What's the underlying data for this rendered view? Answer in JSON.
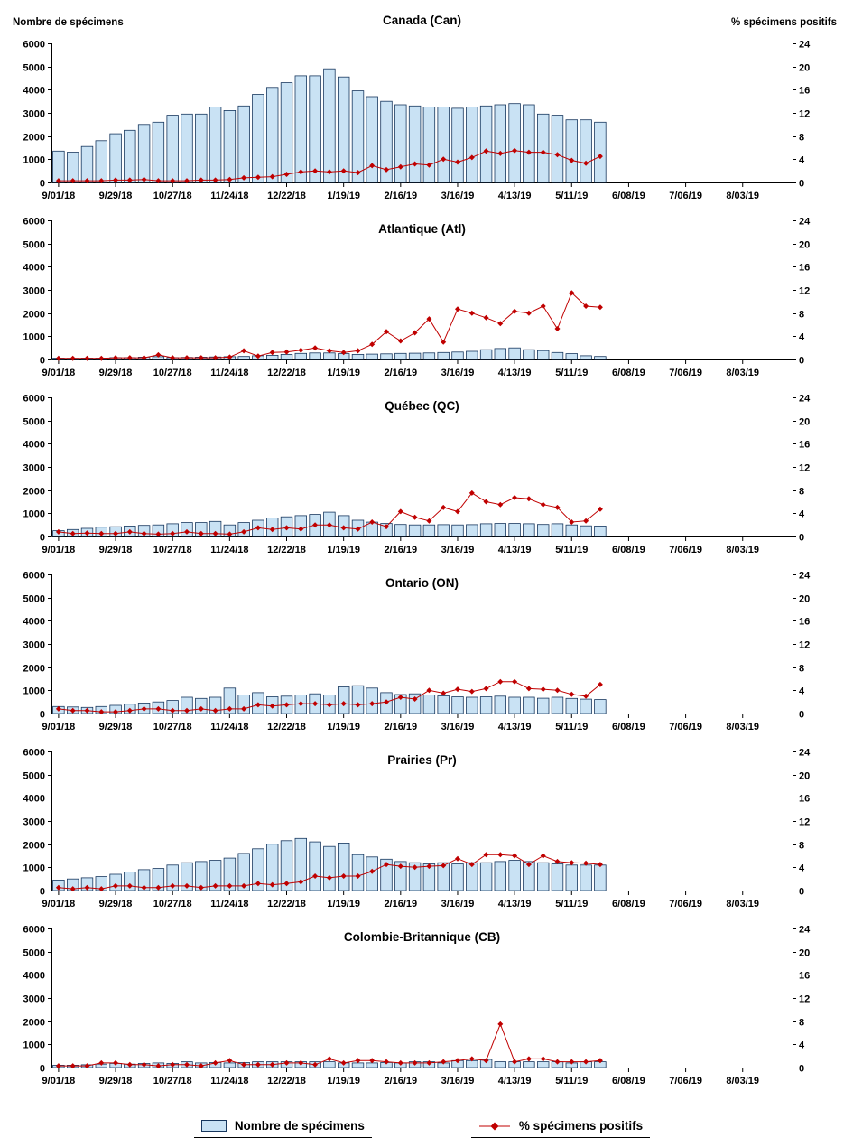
{
  "page": {
    "left_axis_title": "Nombre de spécimens",
    "right_axis_title": "% spécimens positifs",
    "legend_bars": "Nombre de spécimens",
    "legend_line": "% spécimens positifs"
  },
  "colors": {
    "bar_fill": "#C9E2F4",
    "bar_border": "#17375E",
    "line": "#C00000",
    "axis": "#000000",
    "text": "#000000"
  },
  "axes": {
    "x_tick_labels": [
      "9/01/18",
      "9/29/18",
      "10/27/18",
      "11/24/18",
      "12/22/18",
      "1/19/19",
      "2/16/19",
      "3/16/19",
      "4/13/19",
      "5/11/19",
      "6/08/19",
      "7/06/19",
      "8/03/19"
    ],
    "total_weeks": 52,
    "y_left": {
      "min": 0,
      "max": 6000,
      "step": 1000
    },
    "y_right": {
      "min": 0,
      "max": 24,
      "step": 4
    },
    "grid": "off",
    "legend_position": "bottom-center"
  },
  "chart_data": [
    {
      "type": "bar",
      "id": "can",
      "title": "Canada (Can)",
      "ylim_left": [
        0,
        6000
      ],
      "ylim_right": [
        0,
        24
      ],
      "categories": [
        "9/01/18",
        "9/08/18",
        "9/15/18",
        "9/22/18",
        "9/29/18",
        "10/06/18",
        "10/13/18",
        "10/20/18",
        "10/27/18",
        "11/03/18",
        "11/10/18",
        "11/17/18",
        "11/24/18",
        "12/01/18",
        "12/08/18",
        "12/15/18",
        "12/22/18",
        "12/29/18",
        "1/05/19",
        "1/12/19",
        "1/19/19",
        "1/26/19",
        "2/02/19",
        "2/09/19",
        "2/16/19",
        "2/23/19",
        "3/02/19",
        "3/09/19",
        "3/16/19",
        "3/23/19",
        "3/30/19",
        "4/06/19",
        "4/13/19",
        "4/20/19",
        "4/27/19",
        "5/04/19",
        "5/11/19",
        "5/18/19",
        "5/25/19"
      ],
      "series": [
        {
          "name": "Nombre de spécimens",
          "type": "bar",
          "axis": "left",
          "values": [
            1350,
            1300,
            1550,
            1800,
            2100,
            2250,
            2500,
            2600,
            2900,
            2950,
            2950,
            3250,
            3100,
            3300,
            3800,
            4100,
            4300,
            4600,
            4600,
            4900,
            4550,
            3950,
            3700,
            3500,
            3350,
            3300,
            3250,
            3250,
            3200,
            3250,
            3300,
            3350,
            3400,
            3350,
            2950,
            2900,
            2700,
            2700,
            2600
          ]
        },
        {
          "name": "% spécimens positifs",
          "type": "line",
          "axis": "right",
          "values": [
            0.3,
            0.3,
            0.3,
            0.3,
            0.4,
            0.4,
            0.5,
            0.3,
            0.3,
            0.3,
            0.4,
            0.4,
            0.5,
            0.8,
            0.9,
            1.0,
            1.4,
            1.8,
            2.0,
            1.8,
            2.0,
            1.7,
            2.9,
            2.2,
            2.7,
            3.2,
            3.0,
            4.0,
            3.5,
            4.3,
            5.4,
            5.0,
            5.5,
            5.2,
            5.2,
            4.8,
            3.8,
            3.3,
            4.5
          ]
        }
      ]
    },
    {
      "type": "bar",
      "id": "atl",
      "title": "Atlantique (Atl)",
      "ylim_left": [
        0,
        6000
      ],
      "ylim_right": [
        0,
        24
      ],
      "categories": [
        "9/01/18",
        "9/08/18",
        "9/15/18",
        "9/22/18",
        "9/29/18",
        "10/06/18",
        "10/13/18",
        "10/20/18",
        "10/27/18",
        "11/03/18",
        "11/10/18",
        "11/17/18",
        "11/24/18",
        "12/01/18",
        "12/08/18",
        "12/15/18",
        "12/22/18",
        "12/29/18",
        "1/05/19",
        "1/12/19",
        "1/19/19",
        "1/26/19",
        "2/02/19",
        "2/09/19",
        "2/16/19",
        "2/23/19",
        "3/02/19",
        "3/09/19",
        "3/16/19",
        "3/23/19",
        "3/30/19",
        "4/06/19",
        "4/13/19",
        "4/20/19",
        "4/27/19",
        "5/04/19",
        "5/11/19",
        "5/18/19",
        "5/25/19"
      ],
      "series": [
        {
          "name": "Nombre de spécimens",
          "type": "bar",
          "axis": "left",
          "values": [
            60,
            50,
            60,
            60,
            80,
            80,
            100,
            120,
            80,
            90,
            100,
            110,
            120,
            130,
            160,
            180,
            220,
            260,
            280,
            280,
            250,
            220,
            230,
            240,
            260,
            270,
            280,
            300,
            320,
            350,
            420,
            470,
            500,
            420,
            380,
            300,
            250,
            160,
            130
          ]
        },
        {
          "name": "% spécimens positifs",
          "type": "line",
          "axis": "right",
          "values": [
            0.2,
            0.2,
            0.2,
            0.2,
            0.3,
            0.3,
            0.3,
            0.8,
            0.3,
            0.3,
            0.3,
            0.3,
            0.4,
            1.5,
            0.6,
            1.2,
            1.3,
            1.6,
            2.0,
            1.5,
            1.2,
            1.5,
            2.6,
            4.8,
            3.2,
            4.6,
            7.0,
            3.0,
            8.7,
            8.0,
            7.2,
            6.2,
            8.3,
            8.0,
            9.2,
            5.3,
            11.5,
            9.2,
            9.0
          ]
        }
      ]
    },
    {
      "type": "bar",
      "id": "qc",
      "title": "Québec (QC)",
      "ylim_left": [
        0,
        6000
      ],
      "ylim_right": [
        0,
        24
      ],
      "categories": [
        "9/01/18",
        "9/08/18",
        "9/15/18",
        "9/22/18",
        "9/29/18",
        "10/06/18",
        "10/13/18",
        "10/20/18",
        "10/27/18",
        "11/03/18",
        "11/10/18",
        "11/17/18",
        "11/24/18",
        "12/01/18",
        "12/08/18",
        "12/15/18",
        "12/22/18",
        "12/29/18",
        "1/05/19",
        "1/12/19",
        "1/19/19",
        "1/26/19",
        "2/02/19",
        "2/09/19",
        "2/16/19",
        "2/23/19",
        "3/02/19",
        "3/09/19",
        "3/16/19",
        "3/23/19",
        "3/30/19",
        "4/06/19",
        "4/13/19",
        "4/20/19",
        "4/27/19",
        "5/04/19",
        "5/11/19",
        "5/18/19",
        "5/25/19"
      ],
      "series": [
        {
          "name": "Nombre de spécimens",
          "type": "bar",
          "axis": "left",
          "values": [
            250,
            300,
            350,
            400,
            420,
            450,
            480,
            500,
            550,
            600,
            600,
            650,
            500,
            600,
            700,
            800,
            850,
            900,
            950,
            1050,
            900,
            700,
            620,
            560,
            520,
            500,
            500,
            510,
            500,
            510,
            550,
            560,
            560,
            550,
            520,
            550,
            500,
            460,
            450
          ]
        },
        {
          "name": "% spécimens positifs",
          "type": "line",
          "axis": "right",
          "values": [
            0.8,
            0.5,
            0.6,
            0.5,
            0.5,
            0.8,
            0.5,
            0.4,
            0.5,
            0.8,
            0.5,
            0.5,
            0.4,
            0.8,
            1.5,
            1.2,
            1.5,
            1.3,
            2.0,
            2.0,
            1.5,
            1.3,
            2.5,
            1.7,
            4.3,
            3.3,
            2.7,
            5.0,
            4.3,
            7.5,
            6.0,
            5.5,
            6.7,
            6.5,
            5.5,
            5.0,
            2.5,
            2.7,
            4.7
          ]
        }
      ]
    },
    {
      "type": "bar",
      "id": "on",
      "title": "Ontario (ON)",
      "ylim_left": [
        0,
        6000
      ],
      "ylim_right": [
        0,
        24
      ],
      "categories": [
        "9/01/18",
        "9/08/18",
        "9/15/18",
        "9/22/18",
        "9/29/18",
        "10/06/18",
        "10/13/18",
        "10/20/18",
        "10/27/18",
        "11/03/18",
        "11/10/18",
        "11/17/18",
        "11/24/18",
        "12/01/18",
        "12/08/18",
        "12/15/18",
        "12/22/18",
        "12/29/18",
        "1/05/19",
        "1/12/19",
        "1/19/19",
        "1/26/19",
        "2/02/19",
        "2/09/19",
        "2/16/19",
        "2/23/19",
        "3/02/19",
        "3/09/19",
        "3/16/19",
        "3/23/19",
        "3/30/19",
        "4/06/19",
        "4/13/19",
        "4/20/19",
        "4/27/19",
        "5/04/19",
        "5/11/19",
        "5/18/19",
        "5/25/19"
      ],
      "series": [
        {
          "name": "Nombre de spécimens",
          "type": "bar",
          "axis": "left",
          "values": [
            300,
            280,
            260,
            300,
            350,
            400,
            450,
            500,
            560,
            700,
            650,
            700,
            1100,
            800,
            900,
            720,
            750,
            800,
            850,
            800,
            1150,
            1200,
            1100,
            900,
            820,
            850,
            800,
            760,
            720,
            700,
            720,
            750,
            700,
            700,
            660,
            700,
            650,
            620,
            600
          ]
        },
        {
          "name": "% spécimens positifs",
          "type": "line",
          "axis": "right",
          "values": [
            0.8,
            0.5,
            0.5,
            0.3,
            0.3,
            0.5,
            0.8,
            0.8,
            0.5,
            0.5,
            0.8,
            0.5,
            0.8,
            0.8,
            1.5,
            1.3,
            1.5,
            1.7,
            1.7,
            1.5,
            1.7,
            1.5,
            1.7,
            2.0,
            2.8,
            2.5,
            4.0,
            3.5,
            4.2,
            3.8,
            4.3,
            5.5,
            5.5,
            4.3,
            4.2,
            4.0,
            3.3,
            3.0,
            5.0
          ]
        }
      ]
    },
    {
      "type": "bar",
      "id": "pr",
      "title": "Prairies (Pr)",
      "ylim_left": [
        0,
        6000
      ],
      "ylim_right": [
        0,
        24
      ],
      "categories": [
        "9/01/18",
        "9/08/18",
        "9/15/18",
        "9/22/18",
        "9/29/18",
        "10/06/18",
        "10/13/18",
        "10/20/18",
        "10/27/18",
        "11/03/18",
        "11/10/18",
        "11/17/18",
        "11/24/18",
        "12/01/18",
        "12/08/18",
        "12/15/18",
        "12/22/18",
        "12/29/18",
        "1/05/19",
        "1/12/19",
        "1/19/19",
        "1/26/19",
        "2/02/19",
        "2/09/19",
        "2/16/19",
        "2/23/19",
        "3/02/19",
        "3/09/19",
        "3/16/19",
        "3/23/19",
        "3/30/19",
        "4/06/19",
        "4/13/19",
        "4/20/19",
        "4/27/19",
        "5/04/19",
        "5/11/19",
        "5/18/19",
        "5/25/19"
      ],
      "series": [
        {
          "name": "Nombre de spécimens",
          "type": "bar",
          "axis": "left",
          "values": [
            450,
            500,
            550,
            600,
            700,
            800,
            900,
            950,
            1100,
            1200,
            1250,
            1300,
            1400,
            1600,
            1800,
            2000,
            2150,
            2250,
            2100,
            1900,
            2050,
            1550,
            1450,
            1350,
            1250,
            1200,
            1150,
            1200,
            1150,
            1200,
            1200,
            1250,
            1300,
            1250,
            1200,
            1150,
            1100,
            1100,
            1100
          ]
        },
        {
          "name": "% spécimens positifs",
          "type": "line",
          "axis": "right",
          "values": [
            0.5,
            0.3,
            0.5,
            0.3,
            0.8,
            0.8,
            0.5,
            0.5,
            0.8,
            0.8,
            0.5,
            0.8,
            0.8,
            0.8,
            1.2,
            1.0,
            1.2,
            1.5,
            2.5,
            2.2,
            2.5,
            2.5,
            3.3,
            4.5,
            4.2,
            4.0,
            4.2,
            4.3,
            5.5,
            4.5,
            6.2,
            6.2,
            6.0,
            4.5,
            6.0,
            5.0,
            4.8,
            4.7,
            4.5
          ]
        }
      ]
    },
    {
      "type": "bar",
      "id": "cb",
      "title": "Colombie-Britannique (CB)",
      "ylim_left": [
        0,
        6000
      ],
      "ylim_right": [
        0,
        24
      ],
      "categories": [
        "9/01/18",
        "9/08/18",
        "9/15/18",
        "9/22/18",
        "9/29/18",
        "10/06/18",
        "10/13/18",
        "10/20/18",
        "10/27/18",
        "11/03/18",
        "11/10/18",
        "11/17/18",
        "11/24/18",
        "12/01/18",
        "12/08/18",
        "12/15/18",
        "12/22/18",
        "12/29/18",
        "1/05/19",
        "1/12/19",
        "1/19/19",
        "1/26/19",
        "2/02/19",
        "2/09/19",
        "2/16/19",
        "2/23/19",
        "3/02/19",
        "3/09/19",
        "3/16/19",
        "3/23/19",
        "3/30/19",
        "4/06/19",
        "4/13/19",
        "4/20/19",
        "4/27/19",
        "5/04/19",
        "5/11/19",
        "5/18/19",
        "5/25/19"
      ],
      "series": [
        {
          "name": "Nombre de spécimens",
          "type": "bar",
          "axis": "left",
          "values": [
            100,
            100,
            120,
            150,
            180,
            150,
            180,
            200,
            180,
            250,
            200,
            220,
            200,
            220,
            250,
            250,
            250,
            250,
            250,
            250,
            200,
            200,
            200,
            220,
            200,
            250,
            250,
            200,
            300,
            300,
            350,
            250,
            250,
            250,
            250,
            250,
            200,
            250,
            250
          ]
        },
        {
          "name": "% spécimens positifs",
          "type": "line",
          "axis": "right",
          "values": [
            0.3,
            0.3,
            0.3,
            0.8,
            0.8,
            0.5,
            0.5,
            0.3,
            0.5,
            0.5,
            0.3,
            0.8,
            1.2,
            0.5,
            0.5,
            0.5,
            0.8,
            0.8,
            0.5,
            1.5,
            0.8,
            1.2,
            1.2,
            1.0,
            0.8,
            0.8,
            0.8,
            1.0,
            1.2,
            1.5,
            1.2,
            7.5,
            1.0,
            1.5,
            1.5,
            1.0,
            1.0,
            1.0,
            1.2
          ]
        }
      ]
    }
  ]
}
